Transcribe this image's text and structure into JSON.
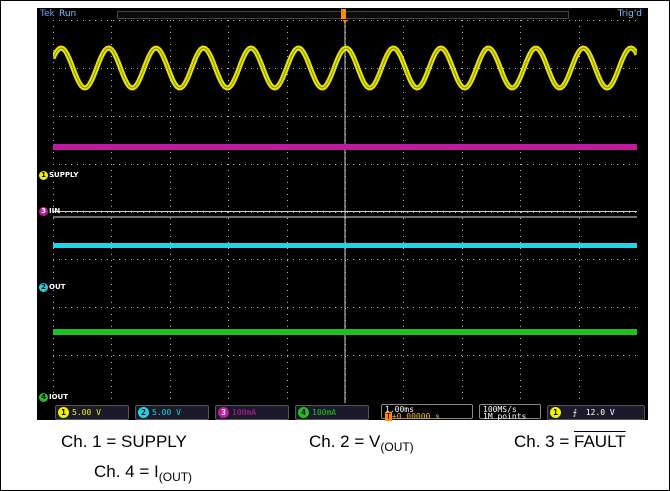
{
  "scope": {
    "brand": "Tek",
    "run_state": "Run",
    "trigger_state": "Trig'd",
    "channels": [
      {
        "num": "1",
        "scale": "5.00 V",
        "color": "#f2f200",
        "label": "SUPPLY"
      },
      {
        "num": "2",
        "scale": "5.00 V",
        "color": "#22d3e6",
        "label": "OUT"
      },
      {
        "num": "3",
        "scale": "100mA",
        "color": "#c01aa0",
        "label": "IIN"
      },
      {
        "num": "4",
        "scale": "100mA",
        "color": "#20c020",
        "label": "IOUT"
      }
    ],
    "timebase": {
      "scale": "1.00ms",
      "position": "+0.00000 s",
      "marker": "T"
    },
    "acquisition": {
      "rate": "100MS/s",
      "points": "1M points"
    },
    "trigger": {
      "source": "1",
      "slope_icon": "rising-edge-icon",
      "level": "12.0 V"
    }
  },
  "captions": {
    "ch1": "Ch. 1 = SUPPLY",
    "ch2_prefix": "Ch. 2 = V",
    "ch2_sub": "(OUT)",
    "ch3_prefix": "Ch. 3 = ",
    "ch3_over": "FAULT",
    "ch4_prefix": "Ch. 4 = I",
    "ch4_sub": "(OUT)"
  }
}
